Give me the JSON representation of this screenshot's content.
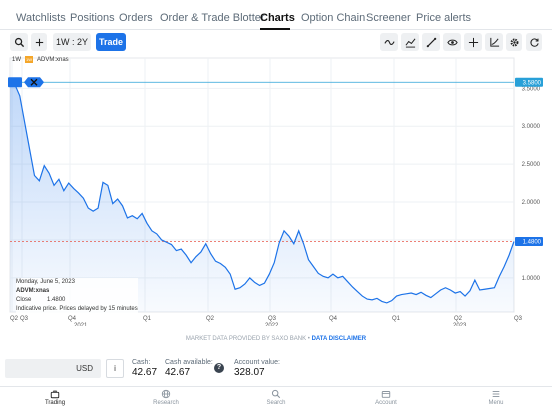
{
  "nav": {
    "tabs": [
      {
        "label": "Watchlists"
      },
      {
        "label": "Positions"
      },
      {
        "label": "Orders"
      },
      {
        "label": "Order & Trade Blotter"
      },
      {
        "label": "Charts"
      },
      {
        "label": "Option Chain"
      },
      {
        "label": "Screener"
      },
      {
        "label": "Price alerts"
      }
    ],
    "active": "Charts"
  },
  "toolbar": {
    "period_label": "1W : 2Y",
    "trade_label": "Trade"
  },
  "chart": {
    "interval": "1W",
    "symbol": "ADVM:xnas",
    "legend_badge": "1W",
    "tooltip": {
      "date": "Monday, June 5, 2023",
      "symbol": "ADVM:xnas",
      "close_label": "Close",
      "close_value": "1.4800",
      "note": "Indicative price. Prices delayed by 15 minutes"
    },
    "last_price_label": "1.4800",
    "top_price_label": "3.5800"
  },
  "chart_data": {
    "type": "area",
    "title": "",
    "y_ticks": [
      1.0,
      1.5,
      2.0,
      2.5,
      3.0,
      3.5
    ],
    "y_tick_labels": [
      "1.0000",
      "1.5000",
      "2.0000",
      "2.5000",
      "3.0000",
      "3.5000"
    ],
    "ylim": [
      0.55,
      3.9
    ],
    "x_quarter_labels": [
      "Q2",
      "Q3",
      "Q4",
      "Q1",
      "Q2",
      "Q3",
      "Q4",
      "Q1",
      "Q2",
      "Q3"
    ],
    "x_year_labels": [
      "2021",
      "2022",
      "2023"
    ],
    "horizontal_lines": [
      3.58,
      1.48
    ],
    "series": [
      {
        "values": [
          3.58,
          3.55,
          3.4,
          3.05,
          2.7,
          2.35,
          2.28,
          2.48,
          2.38,
          2.22,
          2.3,
          2.15,
          2.25,
          2.18,
          2.12,
          2.05,
          1.92,
          1.88,
          1.92,
          2.26,
          2.22,
          1.98,
          2.04,
          1.95,
          1.79,
          1.82,
          1.78,
          1.85,
          1.72,
          1.62,
          1.58,
          1.5,
          1.47,
          1.44,
          1.36,
          1.38,
          1.3,
          1.2,
          1.28,
          1.34,
          1.45,
          1.32,
          1.22,
          1.19,
          1.14,
          1.05,
          0.85,
          0.87,
          0.92,
          1.0,
          0.94,
          0.9,
          0.93,
          1.05,
          1.2,
          1.46,
          1.62,
          1.55,
          1.45,
          1.62,
          1.45,
          1.24,
          1.15,
          1.06,
          1.02,
          1.0,
          1.05,
          1.0,
          1.02,
          0.95,
          0.88,
          0.82,
          0.76,
          0.72,
          0.71,
          0.73,
          0.69,
          0.67,
          0.7,
          0.76,
          0.78,
          0.79,
          0.8,
          0.78,
          0.81,
          0.77,
          0.74,
          0.79,
          0.84,
          0.87,
          0.84,
          0.8,
          0.82,
          0.76,
          0.83,
          0.97,
          0.84,
          0.85,
          0.86,
          0.87,
          1.02,
          1.15,
          1.3,
          1.48
        ]
      }
    ]
  },
  "provider": {
    "text": "MARKET DATA PROVIDED BY SAXO BANK",
    "separator": "•",
    "link": "DATA DISCLAIMER"
  },
  "account": {
    "currency": "USD",
    "info_button": "i",
    "cash_label": "Cash:",
    "cash_value": "42.67",
    "cash_available_label": "Cash available:",
    "cash_available_value": "42.67",
    "account_value_label": "Account value:",
    "account_value": "328.07"
  },
  "bottom_nav": {
    "items": [
      {
        "label": "Trading",
        "icon": "briefcase-icon"
      },
      {
        "label": "Research",
        "icon": "globe-icon"
      },
      {
        "label": "Search",
        "icon": "search-icon"
      },
      {
        "label": "Account",
        "icon": "wallet-icon"
      },
      {
        "label": "Menu",
        "icon": "menu-icon"
      }
    ]
  },
  "colors": {
    "accent": "#1d73e8",
    "line": "#1d73e8",
    "area_fill": "#dbe9fb",
    "last_price_line": "#e8574a",
    "top_line": "#28a0d8"
  }
}
